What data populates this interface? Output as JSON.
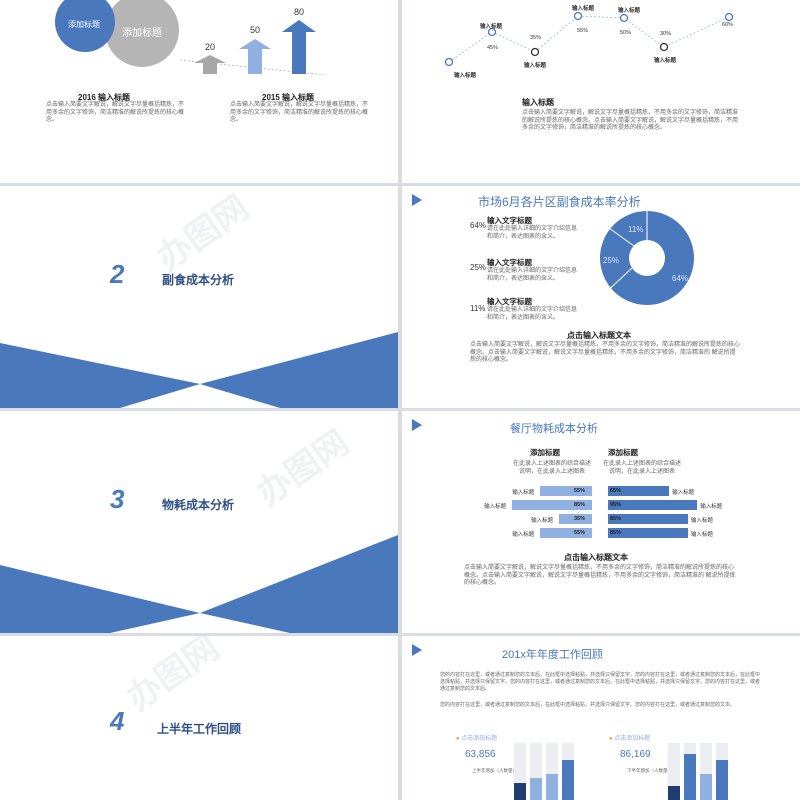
{
  "slide1": {
    "circle_small": "添加标题",
    "circle_big": "添加标题",
    "arrow_values": [
      "20",
      "50",
      "80"
    ],
    "title_2016": "2016 输入标题",
    "text_2016": "点击输入简要文字解说，解说文字尽量概括精炼，不用多余的文字修饰，简洁精准的解说所提炼的核心概念。",
    "title_2015": "2015 输入标题",
    "text_2015": "点击输入简要文字解说，解说文字尽量概括精炼，不用多余的文字修饰，简洁精准的解说所提炼的核心概念。"
  },
  "slide2": {
    "points": [
      {
        "label": "输入标题",
        "value": "45%"
      },
      {
        "label": "输入标题",
        "value": "35%"
      },
      {
        "label": "输入标题",
        "value": "55%"
      },
      {
        "label": "输入标题",
        "value": "50%"
      },
      {
        "label": "输入标题",
        "value": "30%"
      },
      {
        "label": "输入标题",
        "value": "60%"
      }
    ],
    "title": "输入标题",
    "text": "点击输入简要文字解说，解说文字尽量概括精炼，不用多余的文字修饰，简洁精准的解说所提炼的核心概念。点击输入简要文字解说，解说文字尽量概括精炼，不用多余的文字修饰，简洁精准的解说所提炼的核心概念。"
  },
  "slide3": {
    "number": "2",
    "title": "副食成本分析"
  },
  "slide4": {
    "title": "市场6月各片区副食成本率分析",
    "items": [
      {
        "pct": "64%",
        "heading": "输入文字标题",
        "desc": "请在此处输入详细的文字介绍信息和简介，表达图表的含义。"
      },
      {
        "pct": "25%",
        "heading": "输入文字标题",
        "desc": "请在此处输入详细的文字介绍信息和简介，表达图表的含义。"
      },
      {
        "pct": "11%",
        "heading": "输入文字标题",
        "desc": "请在此处输入详细的文字介绍信息和简介，表达图表的含义。"
      }
    ],
    "donut_labels": [
      "64%",
      "25%",
      "11%"
    ],
    "sub_title": "点击输入标题文本",
    "text": "点击输入简要文字解说，解说文字尽量概括精炼，不用多余的文字修饰，简洁精准的解说所提炼的核心概念。点击输入简要文字解说，解说文字尽量概括精炼，不用多余的文字修饰，简洁精准的 解说所提炼的核心概念。"
  },
  "slide5": {
    "number": "3",
    "title": "物耗成本分析"
  },
  "slide6": {
    "title": "餐厅物耗成本分析",
    "left_heading": "添加标题",
    "left_desc": "在此录入上述图表的综合描述说明，在此录入上述图表",
    "right_heading": "添加标题",
    "right_desc": "在此录入上述图表的综合描述说明，在此录入上述图表",
    "left_bars": [
      {
        "label": "输入标题",
        "pct": "55%",
        "value": 55
      },
      {
        "label": "输入标题",
        "pct": "85%",
        "value": 85
      },
      {
        "label": "输入标题",
        "pct": "35%",
        "value": 35
      },
      {
        "label": "输入标题",
        "pct": "55%",
        "value": 55
      }
    ],
    "right_bars": [
      {
        "label": "输入标题",
        "pct": "65%",
        "value": 65
      },
      {
        "label": "输入标题",
        "pct": "95%",
        "value": 95
      },
      {
        "label": "输入标题",
        "pct": "85%",
        "value": 85
      },
      {
        "label": "输入标题",
        "pct": "85%",
        "value": 85
      }
    ],
    "sub_title": "点击输入标题文本",
    "text": "点击输入简要文字解说，解说文字尽量概括精炼，不用多余的文字修饰，简洁精准的解说所提炼的核心概念。点击输入简要文字解说，解说文字尽量概括精炼，不用多余的文字修饰，简洁精准的 解说所提炼的核心概念。"
  },
  "slide7": {
    "number": "4",
    "title": "上半年工作回顾"
  },
  "slide8": {
    "title": "201x年年度工作回顾",
    "para1": "您的内容打在这里，或者通过复制您的文本后，在此框中选择粘贴，并选择只保留文字。您的内容打在这里，或者通过复制您的文本后，在此框中选择粘贴，并选择只保留文字。您的内容打在这里，或者通过复制您的文本后，在此框中选择粘贴，并选择只保留文字。您的内容打在这里，或者通过复制您的文本后。",
    "para2": "您的内容打在这里，或者通过复制您的文本后，在此框中选择粘贴，并选择只保留文字。您的内容打在这里，或者通过复制您的文本。",
    "left_tag": "点击添加标题",
    "left_value": "63,856",
    "left_caption": "上半年增加（人数量）",
    "right_tag": "点击添加标题",
    "right_value": "86,169",
    "right_caption": "下半年增加（人数量）"
  },
  "watermark": "办图网",
  "colors": {
    "primary": "#4a78bd",
    "light": "#8fb0e0",
    "gray": "#b7b7b7",
    "dark": "#1f3d6e"
  }
}
